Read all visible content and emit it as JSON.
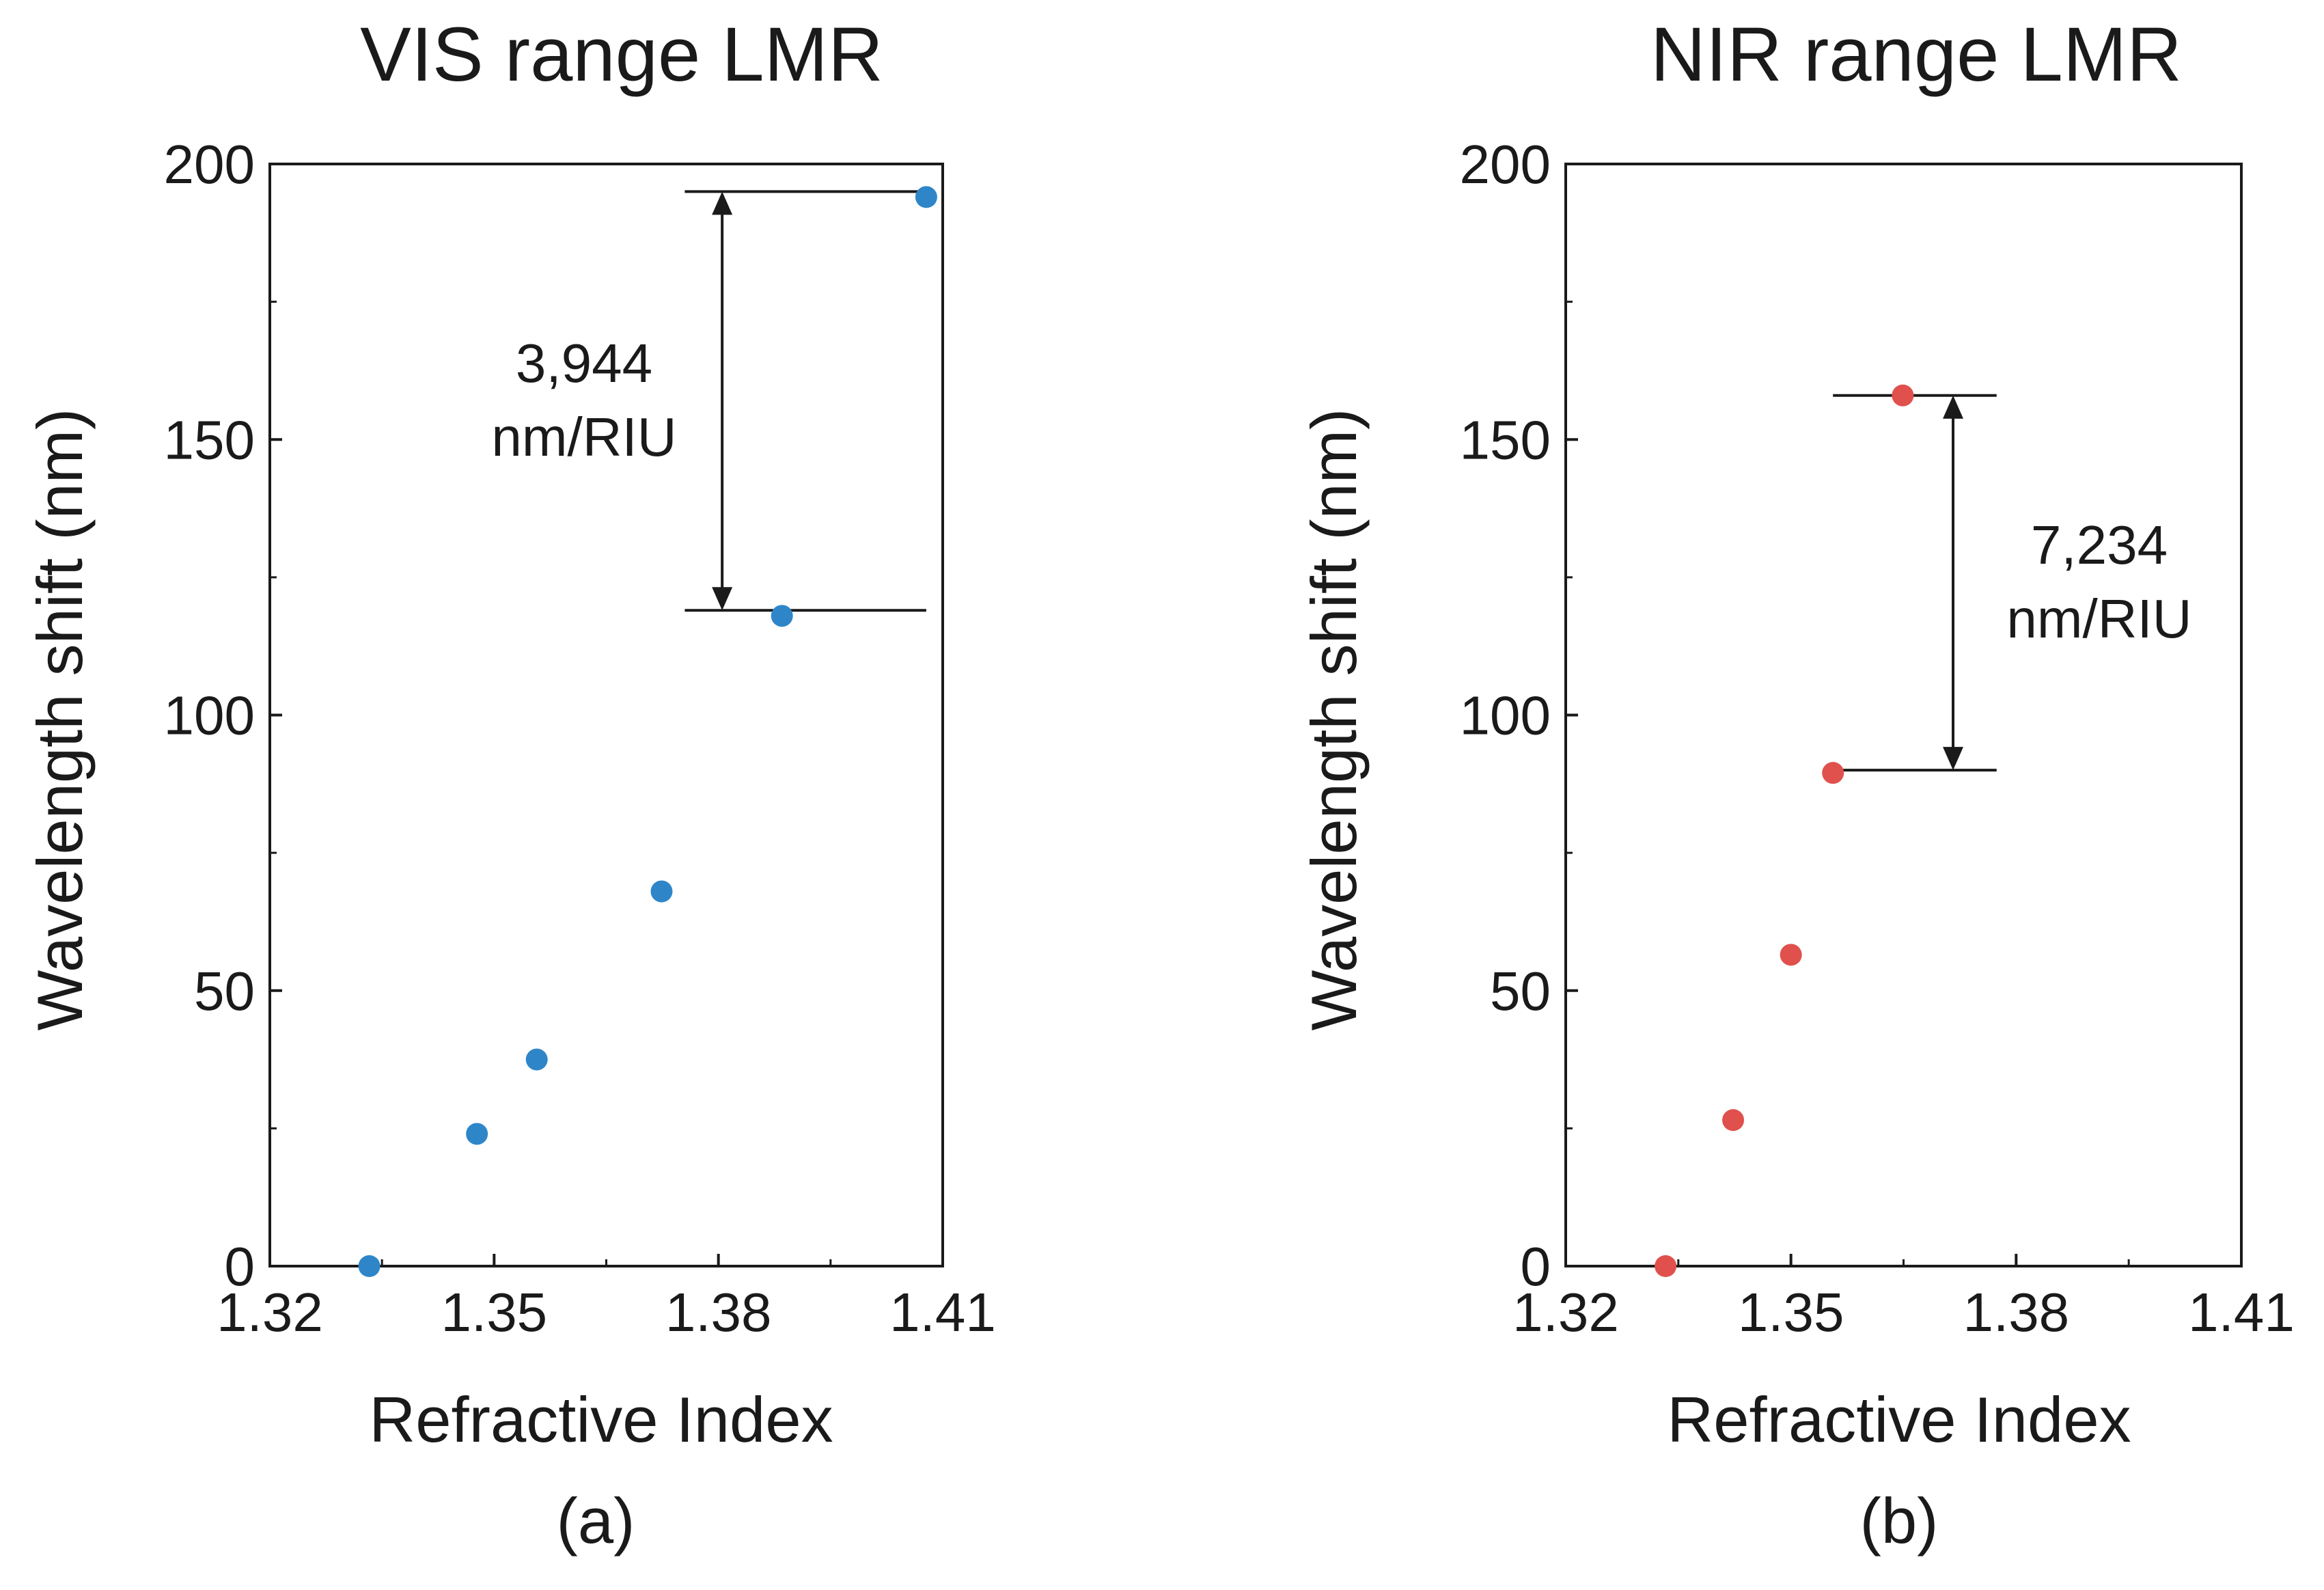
{
  "chart_data": [
    {
      "type": "scatter",
      "title": "VIS range LMR",
      "panel_label": "(a)",
      "xlabel": "Refractive Index",
      "ylabel": "Wavelength shift (nm)",
      "xlim": [
        1.32,
        1.41
      ],
      "ylim": [
        0,
        200
      ],
      "x_ticks": [
        1.32,
        1.35,
        1.38,
        1.41
      ],
      "x_tick_labels": [
        "1.32",
        "1.35",
        "1.38",
        "1.41"
      ],
      "y_ticks": [
        0,
        50,
        100,
        150,
        200
      ],
      "y_tick_labels": [
        "0",
        "50",
        "100",
        "150",
        "200"
      ],
      "grid": false,
      "series": [
        {
          "name": "VIS range LMR",
          "color": "#2e86c8",
          "x": [
            1.3333,
            1.3477,
            1.3557,
            1.3724,
            1.3885,
            1.4078
          ],
          "y": [
            0,
            24,
            37.5,
            68,
            118,
            194
          ]
        }
      ],
      "annotation": {
        "line1": "3,944",
        "line2": "nm/RIU",
        "x": 1.3805,
        "y_from": 119,
        "y_to": 195,
        "hline_x_from": 1.3755,
        "hline_x_to": 1.4078
      }
    },
    {
      "type": "scatter",
      "title": "NIR range LMR",
      "panel_label": "(b)",
      "xlabel": "Refractive Index",
      "ylabel": "Wavelength shift (nm)",
      "xlim": [
        1.32,
        1.41
      ],
      "ylim": [
        0,
        200
      ],
      "x_ticks": [
        1.32,
        1.35,
        1.38,
        1.41
      ],
      "x_tick_labels": [
        "1.32",
        "1.35",
        "1.38",
        "1.41"
      ],
      "y_ticks": [
        0,
        50,
        100,
        150,
        200
      ],
      "y_tick_labels": [
        "0",
        "50",
        "100",
        "150",
        "200"
      ],
      "grid": false,
      "series": [
        {
          "name": "NIR range LMR",
          "color": "#e0504d",
          "x": [
            1.3333,
            1.3423,
            1.35,
            1.3556,
            1.3649
          ],
          "y": [
            0,
            26.5,
            56.5,
            89.5,
            158
          ]
        }
      ],
      "annotation": {
        "line1": "7,234",
        "line2": "nm/RIU",
        "x": 1.3716,
        "y_from": 90,
        "y_to": 158,
        "hline_x_from": 1.3556,
        "hline_x_to": 1.3774
      }
    }
  ]
}
